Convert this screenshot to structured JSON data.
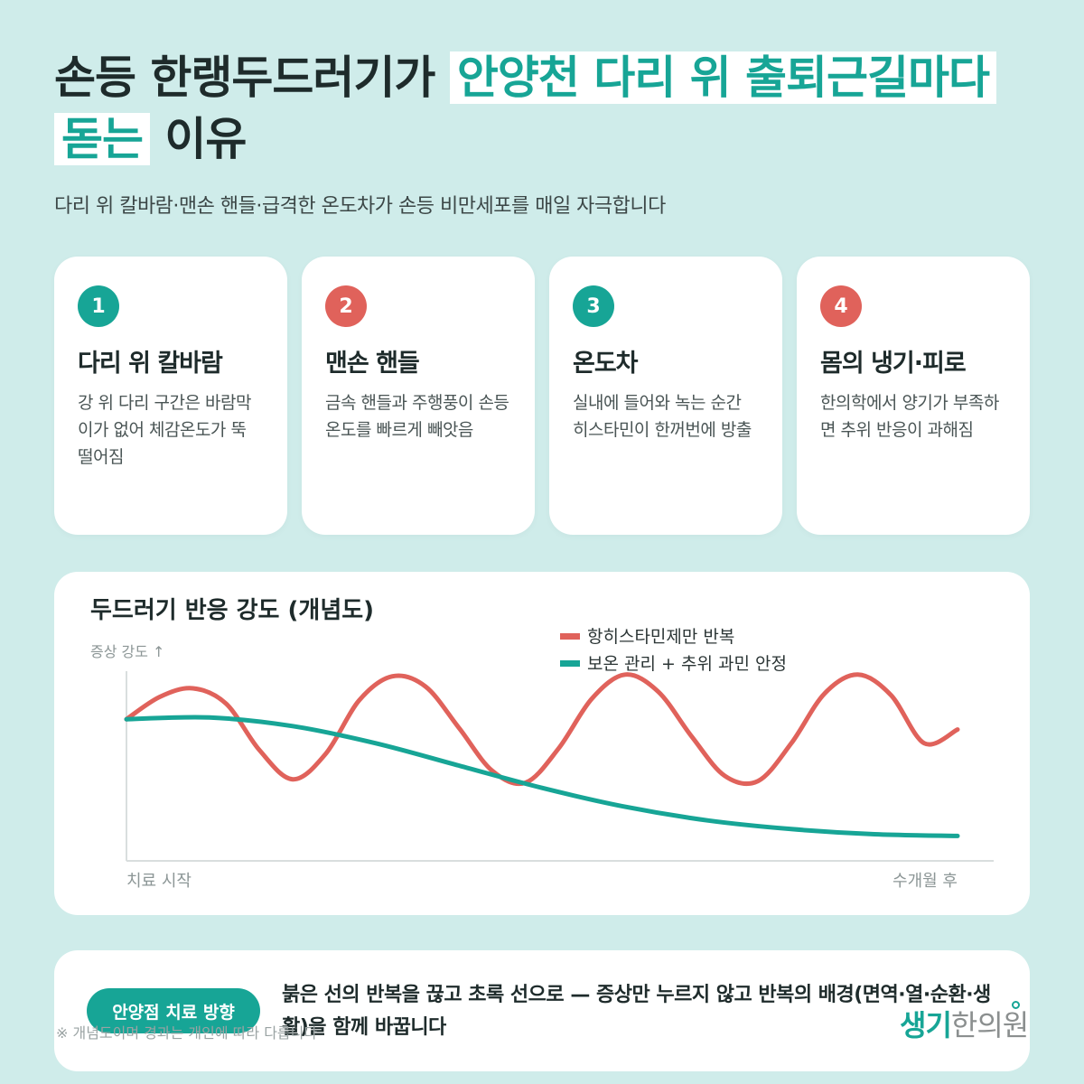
{
  "title": {
    "part1": "손등 한랭두드러기가 ",
    "highlight": "안양천 다리 위 출퇴근길마다 돋는",
    "part2": " 이유"
  },
  "subtitle": "다리 위 칼바람·맨손 핸들·급격한 온도차가 손등 비만세포를 매일 자극합니다",
  "cards": [
    {
      "num": "1",
      "title": "다리 위 칼바람",
      "desc": "강 위 다리 구간은 바람막이가 없어 체감온도가 뚝 떨어짐",
      "badge_color": "#17a596"
    },
    {
      "num": "2",
      "title": "맨손 핸들",
      "desc": "금속 핸들과 주행풍이 손등 온도를 빠르게 빼앗음",
      "badge_color": "#e0625b"
    },
    {
      "num": "3",
      "title": "온도차",
      "desc": "실내에 들어와 녹는 순간 히스타민이 한꺼번에 방출",
      "badge_color": "#17a596"
    },
    {
      "num": "4",
      "title": "몸의 냉기·피로",
      "desc": "한의학에서 양기가 부족하면 추위 반응이 과해짐",
      "badge_color": "#e0625b"
    }
  ],
  "chart_data": {
    "type": "line",
    "title": "두드러기 반응 강도 (개념도)",
    "ylabel": "증상 강도 ↑",
    "x_start_label": "치료 시작",
    "x_end_label": "수개월 후",
    "xlim": [
      0,
      1
    ],
    "ylim": [
      0,
      1
    ],
    "grid": false,
    "legend_position": "top-right",
    "series": [
      {
        "name": "항히스타민제만 반복",
        "color": "#e0625b",
        "x": [
          0,
          0.04,
          0.08,
          0.12,
          0.16,
          0.2,
          0.24,
          0.28,
          0.32,
          0.36,
          0.4,
          0.44,
          0.48,
          0.52,
          0.56,
          0.6,
          0.64,
          0.68,
          0.72,
          0.76,
          0.8,
          0.84,
          0.88,
          0.92,
          0.96,
          1
        ],
        "y": [
          0.72,
          0.85,
          0.9,
          0.81,
          0.54,
          0.37,
          0.52,
          0.83,
          0.97,
          0.91,
          0.67,
          0.42,
          0.35,
          0.55,
          0.84,
          0.98,
          0.88,
          0.62,
          0.39,
          0.36,
          0.58,
          0.87,
          0.98,
          0.86,
          0.58,
          0.66
        ],
        "note": "oscillating"
      },
      {
        "name": "보온 관리 + 추위 과민 안정",
        "color": "#17a596",
        "x": [
          0,
          0.1,
          0.2,
          0.3,
          0.4,
          0.5,
          0.6,
          0.7,
          0.8,
          0.9,
          1
        ],
        "y": [
          0.72,
          0.73,
          0.68,
          0.58,
          0.45,
          0.32,
          0.21,
          0.13,
          0.08,
          0.05,
          0.04
        ]
      }
    ]
  },
  "bottom": {
    "pill": "안양점 치료 방향",
    "text": "붉은 선의 반복을 끊고 초록 선으로 — 증상만 누르지 않고 반복의 배경(면역·열·순환·생활)을 함께 바꿉니다"
  },
  "note": "※ 개념도이며 경과는 개인에 따라 다릅니다",
  "brand": {
    "part1": "생기",
    "part2": "한의원"
  }
}
